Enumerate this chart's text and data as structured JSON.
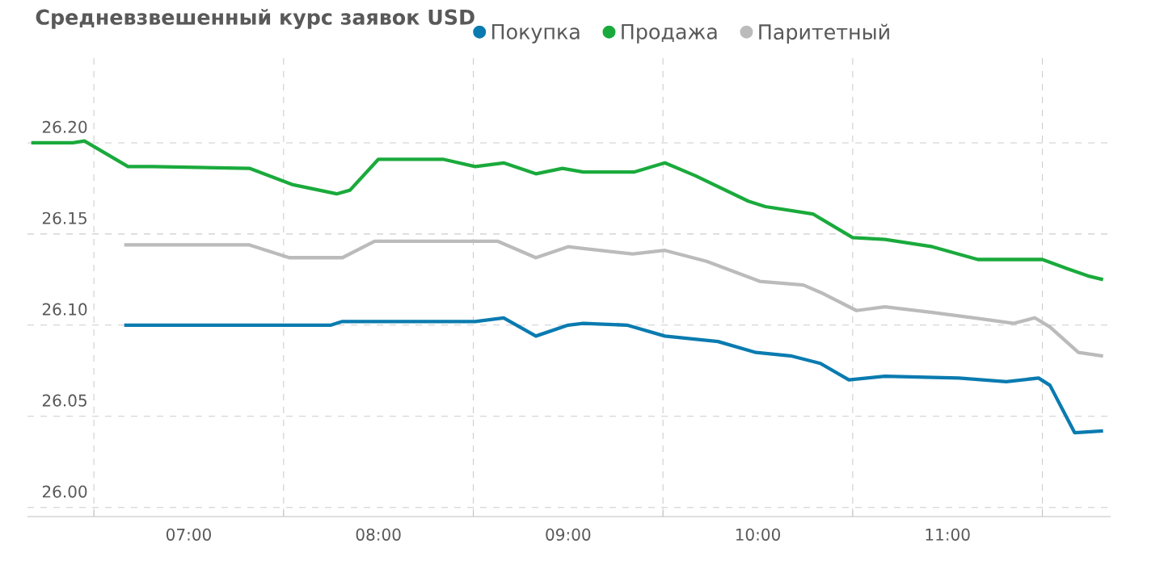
{
  "chart_data": {
    "type": "line",
    "title": "Средневзвешенный курс заявок USD",
    "legend": "top",
    "grid": true,
    "xlim": [
      6.15,
      11.86
    ],
    "ylim": [
      25.995,
      26.25
    ],
    "xticks": [
      {
        "value": 6.5,
        "label": null
      },
      {
        "value": 7,
        "label": "07:00"
      },
      {
        "value": 7.5,
        "label": null
      },
      {
        "value": 8,
        "label": "08:00"
      },
      {
        "value": 8.5,
        "label": null
      },
      {
        "value": 9,
        "label": "09:00"
      },
      {
        "value": 9.5,
        "label": null
      },
      {
        "value": 10,
        "label": "10:00"
      },
      {
        "value": 10.5,
        "label": null
      },
      {
        "value": 11,
        "label": "11:00"
      },
      {
        "value": 11.5,
        "label": null
      }
    ],
    "yticks": [
      {
        "value": 26,
        "label": "26.00"
      },
      {
        "value": 26.05,
        "label": "26.05"
      },
      {
        "value": 26.1,
        "label": "26.10"
      },
      {
        "value": 26.15,
        "label": "26.15"
      },
      {
        "value": 26.2,
        "label": "26.20"
      }
    ],
    "series": [
      {
        "name": "Покупка",
        "color": "#0a7bb0",
        "x": [
          6.66,
          7.75,
          7.81,
          8.51,
          8.66,
          8.83,
          9.0,
          9.08,
          9.31,
          9.51,
          9.79,
          9.99,
          10.18,
          10.33,
          10.48,
          10.67,
          11.06,
          11.31,
          11.48,
          11.54,
          11.67,
          11.82
        ],
        "values": [
          26.1,
          26.1,
          26.102,
          26.102,
          26.104,
          26.094,
          26.1,
          26.101,
          26.1,
          26.094,
          26.091,
          26.085,
          26.083,
          26.079,
          26.07,
          26.072,
          26.071,
          26.069,
          26.071,
          26.067,
          26.041,
          26.042
        ]
      },
      {
        "name": "Продажа",
        "color": "#1aaa3c",
        "x": [
          6.17,
          6.39,
          6.45,
          6.68,
          6.81,
          7.32,
          7.55,
          7.78,
          7.85,
          8.0,
          8.34,
          8.51,
          8.66,
          8.83,
          8.97,
          9.08,
          9.35,
          9.51,
          9.67,
          9.95,
          10.04,
          10.29,
          10.5,
          10.67,
          10.92,
          11.16,
          11.5,
          11.63,
          11.74,
          11.82
        ],
        "values": [
          26.2,
          26.2,
          26.201,
          26.187,
          26.187,
          26.186,
          26.177,
          26.172,
          26.174,
          26.191,
          26.191,
          26.187,
          26.189,
          26.183,
          26.186,
          26.184,
          26.184,
          26.189,
          26.182,
          26.168,
          26.165,
          26.161,
          26.148,
          26.147,
          26.143,
          26.136,
          26.136,
          26.131,
          26.127,
          26.125
        ]
      },
      {
        "name": "Паритетный",
        "color": "#bbbbbb",
        "x": [
          6.66,
          7.32,
          7.53,
          7.81,
          7.98,
          8.32,
          8.63,
          8.83,
          9.0,
          9.08,
          9.34,
          9.51,
          9.73,
          10.01,
          10.24,
          10.33,
          10.52,
          10.67,
          10.92,
          11.14,
          11.35,
          11.46,
          11.54,
          11.69,
          11.82
        ],
        "values": [
          26.144,
          26.144,
          26.137,
          26.137,
          26.146,
          26.146,
          26.146,
          26.137,
          26.143,
          26.142,
          26.139,
          26.141,
          26.135,
          26.124,
          26.122,
          26.118,
          26.108,
          26.11,
          26.107,
          26.104,
          26.101,
          26.104,
          26.099,
          26.085,
          26.083
        ]
      }
    ]
  }
}
